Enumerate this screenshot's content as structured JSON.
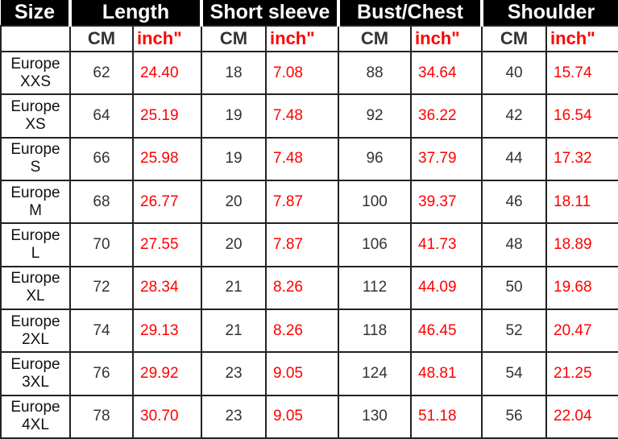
{
  "headers": {
    "size": "Size",
    "groups": [
      "Length",
      "Short sleeve",
      "Bust/Chest",
      "Shoulder"
    ],
    "cm": "CM",
    "inch": "inch\""
  },
  "colors": {
    "inch_text": "#ff0000",
    "header_bg": "#000000",
    "header_text": "#ffffff"
  },
  "rows": [
    {
      "region": "Europe",
      "size": "XXS",
      "v": [
        "62",
        "24.40",
        "18",
        "7.08",
        "88",
        "34.64",
        "40",
        "15.74"
      ]
    },
    {
      "region": "Europe",
      "size": "XS",
      "v": [
        "64",
        "25.19",
        "19",
        "7.48",
        "92",
        "36.22",
        "42",
        "16.54"
      ]
    },
    {
      "region": "Europe",
      "size": "S",
      "v": [
        "66",
        "25.98",
        "19",
        "7.48",
        "96",
        "37.79",
        "44",
        "17.32"
      ]
    },
    {
      "region": "Europe",
      "size": "M",
      "v": [
        "68",
        "26.77",
        "20",
        "7.87",
        "100",
        "39.37",
        "46",
        "18.11"
      ]
    },
    {
      "region": "Europe",
      "size": "L",
      "v": [
        "70",
        "27.55",
        "20",
        "7.87",
        "106",
        "41.73",
        "48",
        "18.89"
      ]
    },
    {
      "region": "Europe",
      "size": "XL",
      "v": [
        "72",
        "28.34",
        "21",
        "8.26",
        "112",
        "44.09",
        "50",
        "19.68"
      ]
    },
    {
      "region": "Europe",
      "size": "2XL",
      "v": [
        "74",
        "29.13",
        "21",
        "8.26",
        "118",
        "46.45",
        "52",
        "20.47"
      ]
    },
    {
      "region": "Europe",
      "size": "3XL",
      "v": [
        "76",
        "29.92",
        "23",
        "9.05",
        "124",
        "48.81",
        "54",
        "21.25"
      ]
    },
    {
      "region": "Europe",
      "size": "4XL",
      "v": [
        "78",
        "30.70",
        "23",
        "9.05",
        "130",
        "51.18",
        "56",
        "22.04"
      ]
    }
  ]
}
